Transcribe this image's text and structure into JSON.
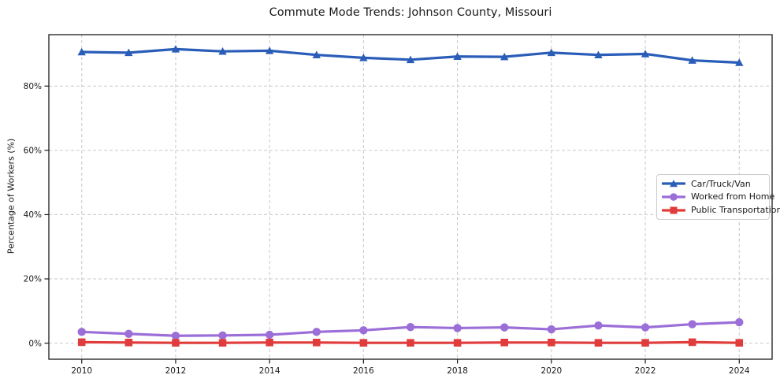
{
  "chart_data": {
    "type": "line",
    "title": "Commute Mode Trends: Johnson County, Missouri",
    "xlabel": "",
    "ylabel": "Percentage of Workers (%)",
    "x": [
      2010,
      2011,
      2012,
      2013,
      2014,
      2015,
      2016,
      2017,
      2018,
      2019,
      2020,
      2021,
      2022,
      2023,
      2024
    ],
    "series": [
      {
        "name": "Car/Truck/Van",
        "color": "#2a5db8",
        "marker": "triangle",
        "values": [
          90.6,
          90.4,
          91.5,
          90.8,
          91.0,
          89.7,
          88.8,
          88.2,
          89.2,
          89.1,
          90.4,
          89.7,
          90.0,
          88.0,
          87.3
        ]
      },
      {
        "name": "Worked from Home",
        "color": "#9b6ed8",
        "marker": "circle",
        "values": [
          3.5,
          2.9,
          2.3,
          2.4,
          2.6,
          3.5,
          4.0,
          5.0,
          4.7,
          4.9,
          4.3,
          5.5,
          4.9,
          5.9,
          6.5
        ]
      },
      {
        "name": "Public Transportation",
        "color": "#e13c3c",
        "marker": "square",
        "values": [
          0.3,
          0.2,
          0.1,
          0.1,
          0.2,
          0.2,
          0.1,
          0.1,
          0.1,
          0.2,
          0.2,
          0.1,
          0.1,
          0.3,
          0.1
        ]
      }
    ],
    "x_ticks": [
      "2010",
      "2012",
      "2014",
      "2016",
      "2018",
      "2020",
      "2022",
      "2024"
    ],
    "y_ticks": {
      "labels": [
        "0%",
        "20%",
        "40%",
        "60%",
        "80%"
      ],
      "values": [
        0,
        20,
        40,
        60,
        80
      ]
    },
    "xlim": [
      2009.3,
      2024.7
    ],
    "ylim": [
      -5,
      96
    ],
    "grid": true,
    "grid_color": "#c9c9c9",
    "spine_color": "#1a1a1a",
    "legend_position": "center-right"
  }
}
